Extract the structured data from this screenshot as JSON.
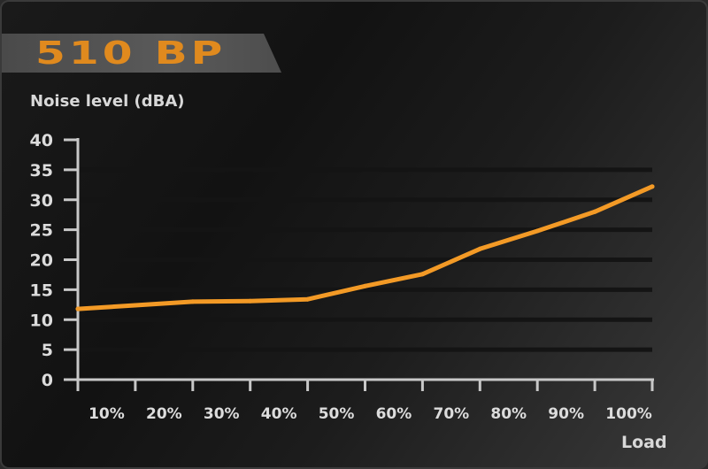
{
  "title": "510 BP",
  "chart_data": {
    "type": "line",
    "ylabel": "Noise level (dBA)",
    "xlabel": "Load",
    "ylim": [
      0,
      40
    ],
    "yticks": [
      0,
      5,
      10,
      15,
      20,
      25,
      30,
      35,
      40
    ],
    "x_tick_labels": [
      "10%",
      "20%",
      "30%",
      "40%",
      "50%",
      "60%",
      "70%",
      "80%",
      "90%",
      "100%"
    ],
    "xlim": [
      0,
      100
    ],
    "grid": true,
    "series": [
      {
        "color": "#f39a26",
        "x": [
          0,
          10,
          20,
          30,
          40,
          50,
          60,
          70,
          80,
          90,
          100
        ],
        "y": [
          11.8,
          12.4,
          13.0,
          13.1,
          13.4,
          15.6,
          17.6,
          21.8,
          24.8,
          28.0,
          32.2
        ]
      }
    ],
    "colors": {
      "line": "#f39a26",
      "axis": "#c8c8c8",
      "grid": "#141414"
    }
  }
}
